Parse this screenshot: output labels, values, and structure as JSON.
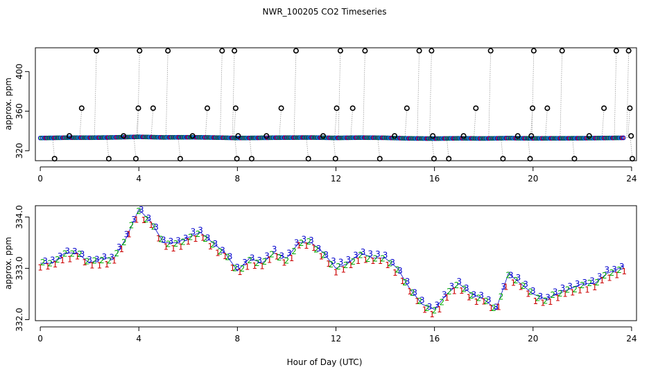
{
  "title": "NWR_100205  CO2 Timeseries",
  "xlabel": "Hour of Day (UTC)",
  "chart_data": [
    {
      "type": "scatter",
      "name": "top-panel",
      "ylabel": "approx. ppm",
      "xlim": [
        -0.2,
        24.2
      ],
      "ylim": [
        310,
        424
      ],
      "x_ticks": [
        0,
        4,
        8,
        12,
        16,
        20,
        24
      ],
      "y_ticks": [
        320,
        360,
        400
      ],
      "baseline": {
        "x": [
          0,
          1,
          2,
          3,
          4,
          5,
          6,
          7,
          8,
          9,
          10,
          11,
          12,
          13,
          14,
          15,
          16,
          17,
          18,
          19,
          20,
          21,
          22,
          23,
          23.7
        ],
        "y": [
          332.9,
          333.2,
          333.2,
          333.5,
          334.1,
          333.5,
          333.7,
          333.4,
          332.9,
          333.1,
          333.3,
          333.4,
          333.0,
          333.3,
          333.1,
          332.5,
          332.3,
          332.6,
          332.4,
          332.8,
          332.5,
          332.6,
          332.7,
          332.9,
          333.1
        ]
      },
      "spikes": [
        {
          "x": 0.5,
          "y": 312
        },
        {
          "x": 1.1,
          "y": 335
        },
        {
          "x": 1.6,
          "y": 363
        },
        {
          "x": 2.2,
          "y": 421
        },
        {
          "x": 2.7,
          "y": 312
        },
        {
          "x": 3.3,
          "y": 335
        },
        {
          "x": 3.8,
          "y": 312
        },
        {
          "x": 3.9,
          "y": 363
        },
        {
          "x": 3.95,
          "y": 421
        },
        {
          "x": 4.5,
          "y": 363
        },
        {
          "x": 5.1,
          "y": 421
        },
        {
          "x": 5.6,
          "y": 312
        },
        {
          "x": 6.1,
          "y": 335
        },
        {
          "x": 6.7,
          "y": 363
        },
        {
          "x": 7.3,
          "y": 421
        },
        {
          "x": 7.8,
          "y": 421
        },
        {
          "x": 7.85,
          "y": 363
        },
        {
          "x": 7.9,
          "y": 312
        },
        {
          "x": 7.95,
          "y": 335
        },
        {
          "x": 8.5,
          "y": 312
        },
        {
          "x": 9.1,
          "y": 335
        },
        {
          "x": 9.7,
          "y": 363
        },
        {
          "x": 10.3,
          "y": 421
        },
        {
          "x": 10.8,
          "y": 312
        },
        {
          "x": 11.4,
          "y": 335
        },
        {
          "x": 11.9,
          "y": 312
        },
        {
          "x": 11.95,
          "y": 363
        },
        {
          "x": 12.1,
          "y": 421
        },
        {
          "x": 12.6,
          "y": 363
        },
        {
          "x": 13.1,
          "y": 421
        },
        {
          "x": 13.7,
          "y": 312
        },
        {
          "x": 14.3,
          "y": 335
        },
        {
          "x": 14.8,
          "y": 363
        },
        {
          "x": 15.3,
          "y": 421
        },
        {
          "x": 15.8,
          "y": 421
        },
        {
          "x": 15.85,
          "y": 335
        },
        {
          "x": 15.9,
          "y": 312
        },
        {
          "x": 16.5,
          "y": 312
        },
        {
          "x": 17.1,
          "y": 335
        },
        {
          "x": 17.6,
          "y": 363
        },
        {
          "x": 18.2,
          "y": 421
        },
        {
          "x": 18.7,
          "y": 312
        },
        {
          "x": 19.3,
          "y": 335
        },
        {
          "x": 19.8,
          "y": 312
        },
        {
          "x": 19.85,
          "y": 335
        },
        {
          "x": 19.9,
          "y": 363
        },
        {
          "x": 19.95,
          "y": 421
        },
        {
          "x": 20.5,
          "y": 363
        },
        {
          "x": 21.1,
          "y": 421
        },
        {
          "x": 21.6,
          "y": 312
        },
        {
          "x": 22.2,
          "y": 335
        },
        {
          "x": 22.8,
          "y": 363
        },
        {
          "x": 23.3,
          "y": 421
        },
        {
          "x": 23.8,
          "y": 421
        },
        {
          "x": 23.85,
          "y": 363
        },
        {
          "x": 23.9,
          "y": 335
        },
        {
          "x": 23.95,
          "y": 312
        }
      ]
    },
    {
      "type": "scatter",
      "name": "bottom-panel",
      "ylabel": "approx. ppm",
      "xlim": [
        -0.2,
        24.2
      ],
      "ylim": [
        331.98,
        334.22
      ],
      "x_ticks": [
        0,
        4,
        8,
        12,
        16,
        20,
        24
      ],
      "y_ticks": [
        332.0,
        333.0,
        334.0
      ],
      "series": [
        {
          "name": "1",
          "symbol": "1",
          "color": "#cc0000"
        },
        {
          "name": "2",
          "symbol": "2",
          "color": "#00aa00"
        },
        {
          "name": "3",
          "symbol": "3",
          "color": "#0000cc"
        }
      ],
      "x": [
        0,
        0.5,
        1,
        1.5,
        2,
        2.5,
        3,
        3.5,
        4,
        4.5,
        5,
        5.5,
        6,
        6.5,
        7,
        7.5,
        8,
        8.5,
        9,
        9.5,
        10,
        10.5,
        11,
        11.5,
        12,
        12.5,
        13,
        13.5,
        14,
        14.5,
        15,
        15.5,
        16,
        16.5,
        17,
        17.5,
        18,
        18.5,
        19,
        19.5,
        20,
        20.5,
        21,
        21.5,
        22,
        22.5,
        23,
        23.5,
        23.7
      ],
      "y": [
        333.1,
        333.1,
        333.3,
        333.3,
        333.1,
        333.2,
        333.2,
        333.6,
        334.15,
        333.9,
        333.5,
        333.5,
        333.6,
        333.7,
        333.5,
        333.3,
        332.95,
        333.2,
        333.1,
        333.3,
        333.2,
        333.5,
        333.5,
        333.3,
        333.0,
        333.1,
        333.3,
        333.2,
        333.2,
        333.0,
        332.6,
        332.3,
        332.2,
        332.5,
        332.7,
        332.5,
        332.4,
        332.2,
        332.9,
        332.7,
        332.5,
        332.4,
        332.5,
        332.6,
        332.7,
        332.7,
        332.9,
        333.0,
        333.05
      ]
    }
  ]
}
